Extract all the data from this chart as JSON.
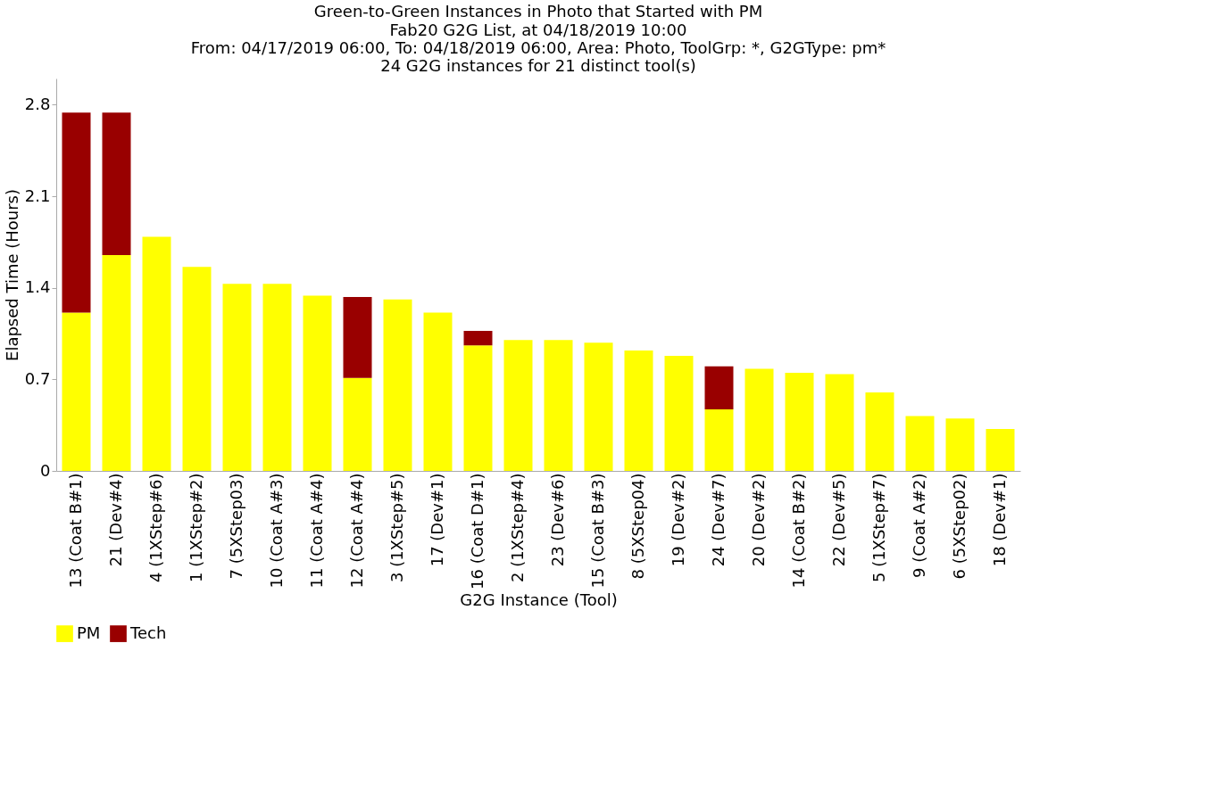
{
  "chart_data": {
    "type": "bar",
    "stacked": true,
    "title": "Green-to-Green Instances in Photo that Started with PM",
    "subtitle": "Fab20 G2G List, at 04/18/2019 10:00\nFrom: 04/17/2019 06:00, To: 04/18/2019 06:00, Area: Photo, ToolGrp: *, G2GType: pm*\n24 G2G instances for 21 distinct tool(s)",
    "xlabel": "G2G Instance (Tool)",
    "ylabel": "Elapsed Time (Hours)",
    "categories": [
      "13 (Coat B#1)",
      "21 (Dev#4)",
      "4 (1XStep#6)",
      "1 (1XStep#2)",
      "7 (5XStep03)",
      "10 (Coat A#3)",
      "11 (Coat A#4)",
      "12 (Coat A#4)",
      "3 (1XStep#5)",
      "17 (Dev#1)",
      "16 (Coat D#1)",
      "2 (1XStep#4)",
      "23 (Dev#6)",
      "15 (Coat B#3)",
      "8 (5XStep04)",
      "19 (Dev#2)",
      "24 (Dev#7)",
      "20 (Dev#2)",
      "14 (Coat B#2)",
      "22 (Dev#5)",
      "5 (1XStep#7)",
      "9 (Coat A#2)",
      "6 (5XStep02)",
      "18 (Dev#1)"
    ],
    "series": [
      {
        "name": "PM",
        "color": "#ffff00",
        "values": [
          1.21,
          1.65,
          1.79,
          1.56,
          1.43,
          1.43,
          1.34,
          0.71,
          1.31,
          1.21,
          0.96,
          1.0,
          1.0,
          0.98,
          0.92,
          0.88,
          0.47,
          0.78,
          0.75,
          0.74,
          0.6,
          0.42,
          0.4,
          0.32
        ]
      },
      {
        "name": "Tech",
        "color": "#990000",
        "values": [
          1.53,
          1.09,
          null,
          null,
          null,
          null,
          null,
          0.62,
          null,
          null,
          0.11,
          null,
          null,
          null,
          null,
          null,
          0.33,
          null,
          null,
          null,
          null,
          null,
          null,
          null
        ]
      }
    ],
    "ylim": [
      0,
      3.0
    ],
    "yticks": [
      0,
      0.7,
      1.4,
      2.1,
      2.8
    ],
    "grid": false,
    "legend": "bottom left"
  }
}
